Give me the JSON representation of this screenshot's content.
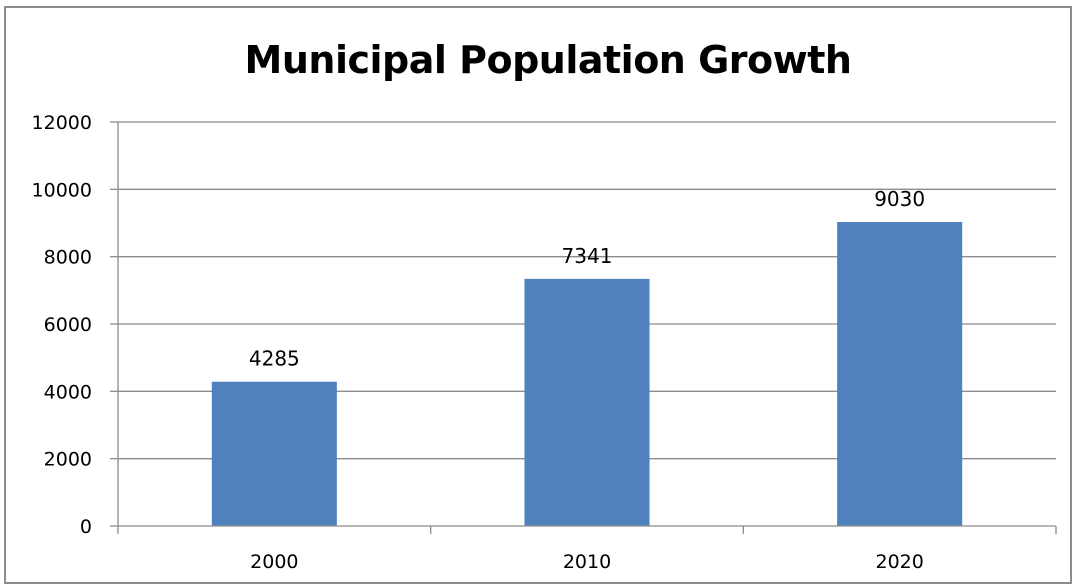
{
  "chart_data": {
    "type": "bar",
    "title": "Municipal Population Growth",
    "categories": [
      "2000",
      "2010",
      "2020"
    ],
    "values": [
      4285,
      7341,
      9030
    ],
    "data_labels": [
      "4285",
      "7341",
      "9030"
    ],
    "ylim": [
      0,
      12000
    ],
    "yticks": [
      0,
      2000,
      4000,
      6000,
      8000,
      10000,
      12000
    ],
    "grid": true,
    "legend": "none",
    "colors": {
      "bar": "#4f81bd",
      "grid": "#8c8c8c",
      "axis": "#8c8c8c"
    }
  }
}
